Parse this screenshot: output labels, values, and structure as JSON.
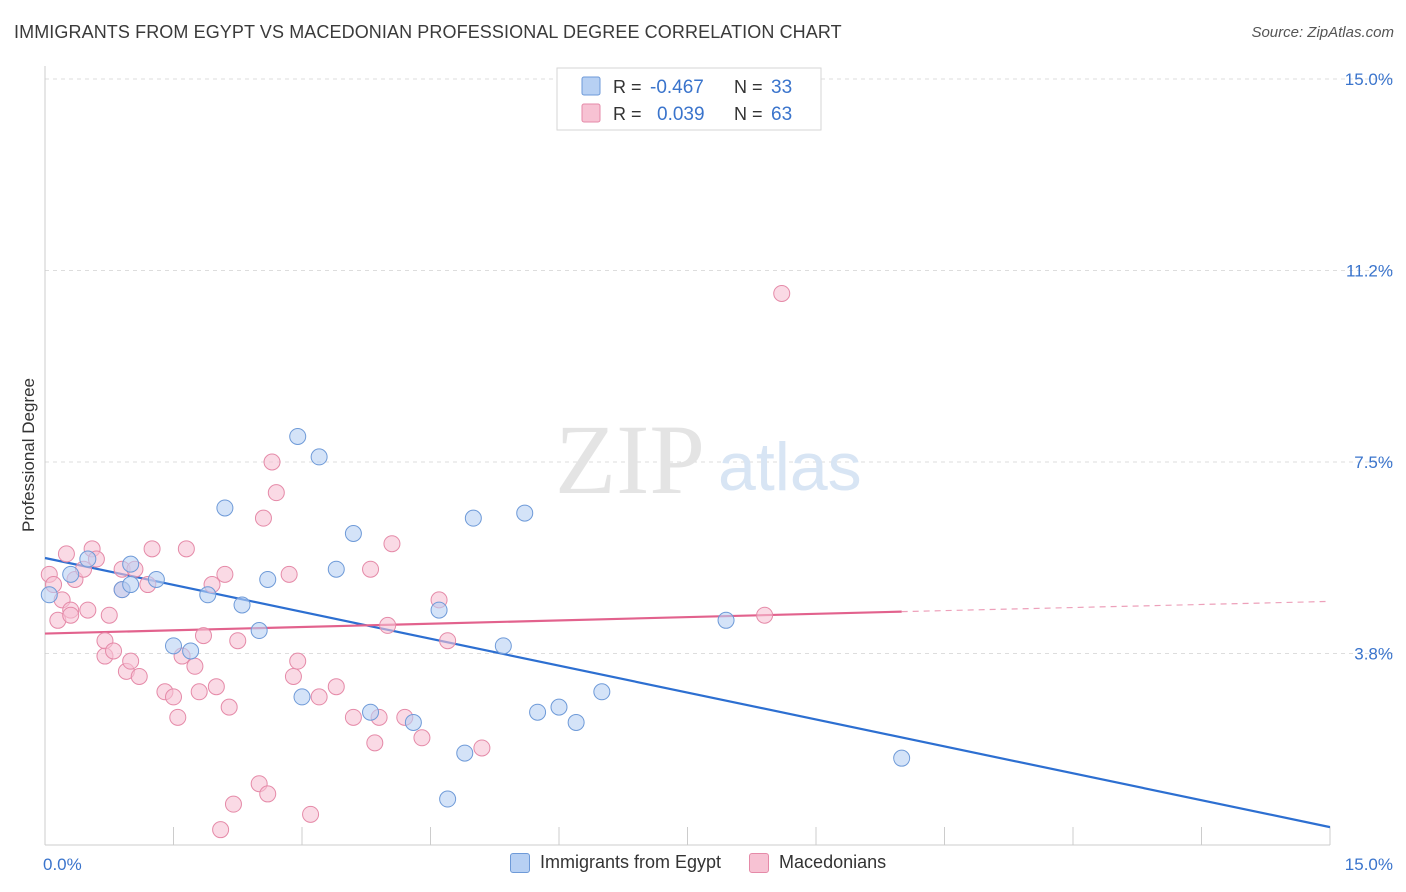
{
  "title": "IMMIGRANTS FROM EGYPT VS MACEDONIAN PROFESSIONAL DEGREE CORRELATION CHART",
  "source": "Source: ZipAtlas.com",
  "colors": {
    "egypt_fill": "#b7d0f3",
    "egypt_stroke": "#6e9ad8",
    "egypt_line": "#2d6fd1",
    "mac_fill": "#f7c2d3",
    "mac_stroke": "#e58aa8",
    "mac_line": "#e2628d",
    "axis_label": "#3a74cc",
    "grid": "#dddddd"
  },
  "legend_top": {
    "rows": [
      {
        "r_label": "R =",
        "r_value": "-0.467",
        "n_label": "N =",
        "n_value": "33"
      },
      {
        "r_label": "R =",
        "r_value": "0.039",
        "n_label": "N =",
        "n_value": "63"
      }
    ]
  },
  "legend_bottom": {
    "egypt": "Immigrants from Egypt",
    "mac": "Macedonians"
  },
  "watermark": {
    "zip": "ZIP",
    "atlas": "atlas"
  },
  "chart_data": {
    "type": "scatter",
    "xlabel": "",
    "ylabel": "Professional Degree",
    "xlim": [
      0,
      15
    ],
    "ylim": [
      0,
      15
    ],
    "x_tick_labels": [
      "0.0%",
      "15.0%"
    ],
    "y_ticks": [
      {
        "value": 3.75,
        "label": "3.8%"
      },
      {
        "value": 7.5,
        "label": "7.5%"
      },
      {
        "value": 11.25,
        "label": "11.2%"
      },
      {
        "value": 15.0,
        "label": "15.0%"
      }
    ],
    "grid": true,
    "series": [
      {
        "name": "Immigrants from Egypt",
        "points": [
          [
            0.05,
            4.9
          ],
          [
            0.3,
            5.3
          ],
          [
            0.5,
            5.6
          ],
          [
            1.0,
            5.5
          ],
          [
            0.9,
            5.0
          ],
          [
            1.0,
            5.1
          ],
          [
            1.3,
            5.2
          ],
          [
            1.5,
            3.9
          ],
          [
            1.7,
            3.8
          ],
          [
            1.9,
            4.9
          ],
          [
            2.1,
            6.6
          ],
          [
            2.3,
            4.7
          ],
          [
            2.5,
            4.2
          ],
          [
            2.6,
            5.2
          ],
          [
            2.95,
            8.0
          ],
          [
            3.0,
            2.9
          ],
          [
            3.2,
            7.6
          ],
          [
            3.4,
            5.4
          ],
          [
            3.6,
            6.1
          ],
          [
            3.8,
            2.6
          ],
          [
            4.3,
            2.4
          ],
          [
            4.6,
            4.6
          ],
          [
            4.7,
            0.9
          ],
          [
            4.9,
            1.8
          ],
          [
            5.0,
            6.4
          ],
          [
            5.35,
            3.9
          ],
          [
            5.6,
            6.5
          ],
          [
            5.75,
            2.6
          ],
          [
            6.0,
            2.7
          ],
          [
            6.2,
            2.4
          ],
          [
            6.5,
            3.0
          ],
          [
            7.95,
            4.4
          ],
          [
            10.0,
            1.7
          ]
        ],
        "trend": {
          "x": [
            0.0,
            15.0
          ],
          "y": [
            5.62,
            0.35
          ]
        }
      },
      {
        "name": "Macedonians",
        "points": [
          [
            0.05,
            5.3
          ],
          [
            0.1,
            5.1
          ],
          [
            0.2,
            4.8
          ],
          [
            0.3,
            4.6
          ],
          [
            0.25,
            5.7
          ],
          [
            0.35,
            5.2
          ],
          [
            0.45,
            5.4
          ],
          [
            0.5,
            4.6
          ],
          [
            0.55,
            5.8
          ],
          [
            0.6,
            5.6
          ],
          [
            0.7,
            3.7
          ],
          [
            0.7,
            4.0
          ],
          [
            0.75,
            4.5
          ],
          [
            0.8,
            3.8
          ],
          [
            0.9,
            5.4
          ],
          [
            0.9,
            5.0
          ],
          [
            0.95,
            3.4
          ],
          [
            1.0,
            3.6
          ],
          [
            1.05,
            5.4
          ],
          [
            1.1,
            3.3
          ],
          [
            1.2,
            5.1
          ],
          [
            1.25,
            5.8
          ],
          [
            1.4,
            3.0
          ],
          [
            1.5,
            2.9
          ],
          [
            1.55,
            2.5
          ],
          [
            1.6,
            3.7
          ],
          [
            1.65,
            5.8
          ],
          [
            1.75,
            3.5
          ],
          [
            1.8,
            3.0
          ],
          [
            1.85,
            4.1
          ],
          [
            1.95,
            5.1
          ],
          [
            2.0,
            3.1
          ],
          [
            2.1,
            5.3
          ],
          [
            2.15,
            2.7
          ],
          [
            2.25,
            4.0
          ],
          [
            2.05,
            0.3
          ],
          [
            2.2,
            0.8
          ],
          [
            2.5,
            1.2
          ],
          [
            2.6,
            1.0
          ],
          [
            2.55,
            6.4
          ],
          [
            2.65,
            7.5
          ],
          [
            2.7,
            6.9
          ],
          [
            2.85,
            5.3
          ],
          [
            2.9,
            3.3
          ],
          [
            2.95,
            3.6
          ],
          [
            3.1,
            0.6
          ],
          [
            3.2,
            2.9
          ],
          [
            3.4,
            3.1
          ],
          [
            3.6,
            2.5
          ],
          [
            3.8,
            5.4
          ],
          [
            3.85,
            2.0
          ],
          [
            3.9,
            2.5
          ],
          [
            4.0,
            4.3
          ],
          [
            4.05,
            5.9
          ],
          [
            4.2,
            2.5
          ],
          [
            4.4,
            2.1
          ],
          [
            4.6,
            4.8
          ],
          [
            4.7,
            4.0
          ],
          [
            5.1,
            1.9
          ],
          [
            8.4,
            4.5
          ],
          [
            8.6,
            10.8
          ],
          [
            0.15,
            4.4
          ],
          [
            0.3,
            4.5
          ]
        ],
        "trend": {
          "x": [
            0.0,
            10.0,
            15.0
          ],
          "y": [
            4.14,
            4.57,
            4.77
          ]
        }
      }
    ]
  }
}
